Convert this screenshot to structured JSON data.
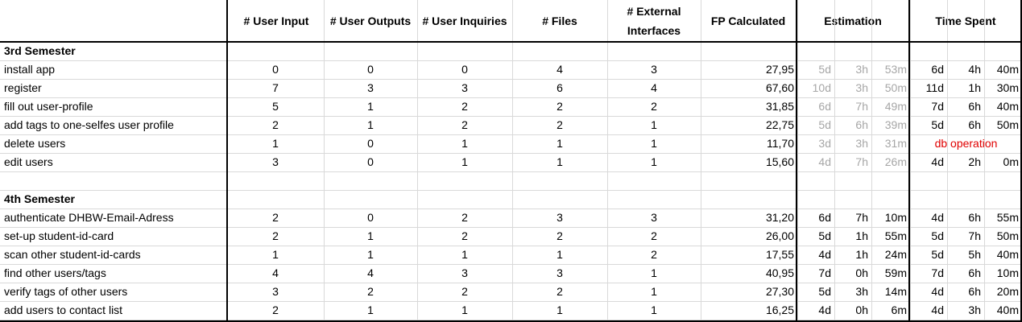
{
  "headers": {
    "user_input": "# User Input",
    "user_outputs": "# User Outputs",
    "user_inquiries": "# User Inquiries",
    "files": "# Files",
    "external_line1": "# External",
    "external_line2": "Interfaces",
    "fp_calculated": "FP Calculated",
    "estimation": "Estimation",
    "time_spent": "Time Spent"
  },
  "sections": [
    {
      "title": "3rd Semester",
      "rows": [
        {
          "task": "install app",
          "ui": "0",
          "uo": "0",
          "uq": "0",
          "f": "4",
          "ei": "3",
          "fp": "27,95",
          "est": [
            "5d",
            "3h",
            "53m"
          ],
          "spent": [
            "6d",
            "4h",
            "40m"
          ]
        },
        {
          "task": "register",
          "ui": "7",
          "uo": "3",
          "uq": "3",
          "f": "6",
          "ei": "4",
          "fp": "67,60",
          "est": [
            "10d",
            "3h",
            "50m"
          ],
          "spent": [
            "11d",
            "1h",
            "30m"
          ]
        },
        {
          "task": "fill out user-profile",
          "ui": "5",
          "uo": "1",
          "uq": "2",
          "f": "2",
          "ei": "2",
          "fp": "31,85",
          "est": [
            "6d",
            "7h",
            "49m"
          ],
          "spent": [
            "7d",
            "6h",
            "40m"
          ]
        },
        {
          "task": "add tags to one-selfes user profile",
          "ui": "2",
          "uo": "1",
          "uq": "2",
          "f": "2",
          "ei": "1",
          "fp": "22,75",
          "est": [
            "5d",
            "6h",
            "39m"
          ],
          "spent": [
            "5d",
            "6h",
            "50m"
          ]
        },
        {
          "task": "delete users",
          "ui": "1",
          "uo": "0",
          "uq": "1",
          "f": "1",
          "ei": "1",
          "fp": "11,70",
          "est": [
            "3d",
            "3h",
            "31m"
          ],
          "spent_note": "db operation"
        },
        {
          "task": "edit users",
          "ui": "3",
          "uo": "0",
          "uq": "1",
          "f": "1",
          "ei": "1",
          "fp": "15,60",
          "est": [
            "4d",
            "7h",
            "26m"
          ],
          "spent": [
            "4d",
            "2h",
            "0m"
          ]
        }
      ]
    },
    {
      "title": "4th Semester",
      "rows": [
        {
          "task": "authenticate DHBW-Email-Adress",
          "ui": "2",
          "uo": "0",
          "uq": "2",
          "f": "3",
          "ei": "3",
          "fp": "31,20",
          "est": [
            "6d",
            "7h",
            "10m"
          ],
          "spent": [
            "4d",
            "6h",
            "55m"
          ]
        },
        {
          "task": "set-up student-id-card",
          "ui": "2",
          "uo": "1",
          "uq": "2",
          "f": "2",
          "ei": "2",
          "fp": "26,00",
          "est": [
            "5d",
            "1h",
            "55m"
          ],
          "spent": [
            "5d",
            "7h",
            "50m"
          ]
        },
        {
          "task": "scan other student-id-cards",
          "ui": "1",
          "uo": "1",
          "uq": "1",
          "f": "1",
          "ei": "2",
          "fp": "17,55",
          "est": [
            "4d",
            "1h",
            "24m"
          ],
          "spent": [
            "5d",
            "5h",
            "40m"
          ]
        },
        {
          "task": "find other users/tags",
          "ui": "4",
          "uo": "4",
          "uq": "3",
          "f": "3",
          "ei": "1",
          "fp": "40,95",
          "est": [
            "7d",
            "0h",
            "59m"
          ],
          "spent": [
            "7d",
            "6h",
            "10m"
          ]
        },
        {
          "task": "verify tags of other users",
          "ui": "3",
          "uo": "2",
          "uq": "2",
          "f": "2",
          "ei": "1",
          "fp": "27,30",
          "est": [
            "5d",
            "3h",
            "14m"
          ],
          "spent": [
            "4d",
            "6h",
            "20m"
          ]
        },
        {
          "task": "add users to contact list",
          "ui": "2",
          "uo": "1",
          "uq": "1",
          "f": "1",
          "ei": "1",
          "fp": "16,25",
          "est": [
            "4d",
            "0h",
            "6m"
          ],
          "spent": [
            "4d",
            "3h",
            "40m"
          ]
        }
      ]
    }
  ]
}
